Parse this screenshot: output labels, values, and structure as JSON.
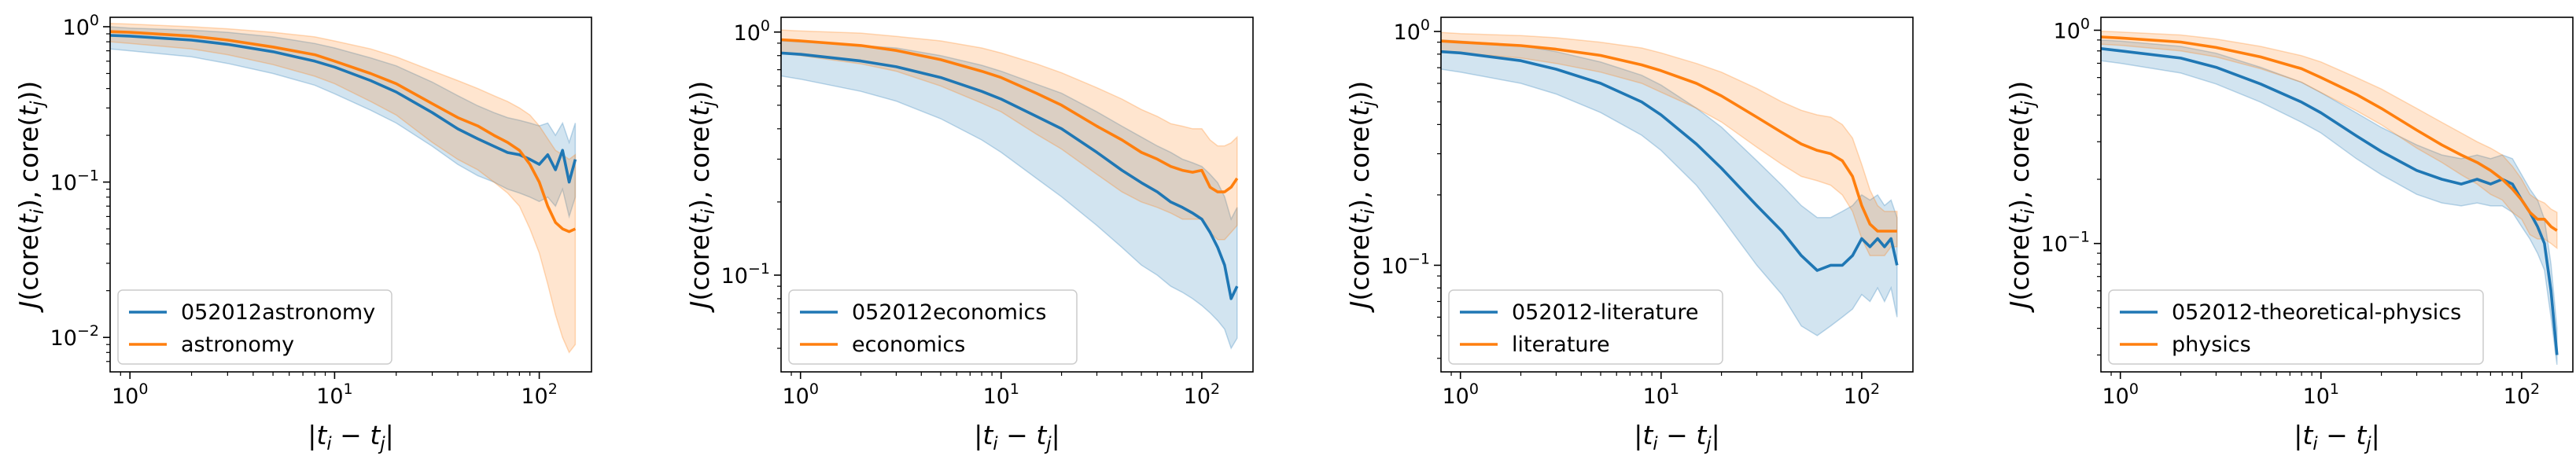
{
  "figure": {
    "colors": {
      "series_a": "#1f77b4",
      "series_b": "#ff7f0e"
    },
    "xlabel": "|t_i − t_j|",
    "ylabel": "J(core(t_i), core(t_j))"
  },
  "chart_data": [
    {
      "type": "line",
      "title": "",
      "xlabel": "|t_i − t_j|",
      "ylabel": "J(core(t_i), core(t_j))",
      "xscale": "log",
      "yscale": "log",
      "xlim": [
        0.8,
        180
      ],
      "ylim": [
        0.006,
        1.15
      ],
      "xticks": [
        {
          "v": 1,
          "base": "10",
          "exp": "0"
        },
        {
          "v": 10,
          "base": "10",
          "exp": "1"
        },
        {
          "v": 100,
          "base": "10",
          "exp": "2"
        }
      ],
      "yticks": [
        {
          "v": 0.01,
          "base": "10",
          "exp": "−2"
        },
        {
          "v": 0.1,
          "base": "10",
          "exp": "−1"
        },
        {
          "v": 1,
          "base": "10",
          "exp": "0"
        }
      ],
      "legend_position": "lower-left",
      "series": [
        {
          "name": "052012astronomy",
          "color": "#1f77b4",
          "x": [
            0.8,
            1,
            2,
            3,
            5,
            8,
            10,
            15,
            20,
            30,
            40,
            50,
            60,
            70,
            80,
            90,
            100,
            110,
            120,
            130,
            140,
            150
          ],
          "y": [
            0.88,
            0.87,
            0.82,
            0.77,
            0.69,
            0.6,
            0.55,
            0.45,
            0.38,
            0.28,
            0.22,
            0.19,
            0.17,
            0.155,
            0.15,
            0.14,
            0.13,
            0.15,
            0.12,
            0.16,
            0.1,
            0.14
          ],
          "band_low": [
            0.72,
            0.7,
            0.64,
            0.58,
            0.5,
            0.42,
            0.37,
            0.29,
            0.24,
            0.17,
            0.13,
            0.11,
            0.1,
            0.09,
            0.085,
            0.08,
            0.075,
            0.08,
            0.07,
            0.09,
            0.06,
            0.08
          ],
          "band_high": [
            1.0,
            0.98,
            0.95,
            0.92,
            0.86,
            0.78,
            0.73,
            0.63,
            0.56,
            0.44,
            0.36,
            0.31,
            0.28,
            0.26,
            0.25,
            0.24,
            0.23,
            0.24,
            0.2,
            0.24,
            0.18,
            0.24
          ]
        },
        {
          "name": "astronomy",
          "color": "#ff7f0e",
          "x": [
            0.8,
            1,
            2,
            3,
            5,
            8,
            10,
            15,
            20,
            30,
            40,
            50,
            60,
            70,
            80,
            90,
            100,
            110,
            120,
            130,
            140,
            150
          ],
          "y": [
            0.93,
            0.92,
            0.87,
            0.82,
            0.74,
            0.66,
            0.6,
            0.5,
            0.43,
            0.32,
            0.26,
            0.23,
            0.2,
            0.18,
            0.16,
            0.13,
            0.1,
            0.07,
            0.055,
            0.05,
            0.048,
            0.05
          ],
          "band_low": [
            0.8,
            0.78,
            0.72,
            0.66,
            0.57,
            0.48,
            0.43,
            0.33,
            0.27,
            0.18,
            0.14,
            0.12,
            0.1,
            0.085,
            0.07,
            0.05,
            0.035,
            0.022,
            0.014,
            0.01,
            0.008,
            0.009
          ],
          "band_high": [
            1.05,
            1.04,
            1.0,
            0.97,
            0.92,
            0.86,
            0.81,
            0.72,
            0.64,
            0.52,
            0.45,
            0.4,
            0.36,
            0.33,
            0.3,
            0.27,
            0.23,
            0.19,
            0.16,
            0.15,
            0.14,
            0.15
          ]
        }
      ]
    },
    {
      "type": "line",
      "title": "",
      "xlabel": "|t_i − t_j|",
      "ylabel": "J(core(t_i), core(t_j))",
      "xscale": "log",
      "yscale": "log",
      "xlim": [
        0.8,
        180
      ],
      "ylim": [
        0.04,
        1.15
      ],
      "xticks": [
        {
          "v": 1,
          "base": "10",
          "exp": "0"
        },
        {
          "v": 10,
          "base": "10",
          "exp": "1"
        },
        {
          "v": 100,
          "base": "10",
          "exp": "2"
        }
      ],
      "yticks": [
        {
          "v": 0.1,
          "base": "10",
          "exp": "−1"
        },
        {
          "v": 1,
          "base": "10",
          "exp": "0"
        }
      ],
      "legend_position": "lower-left",
      "series": [
        {
          "name": "052012economics",
          "color": "#1f77b4",
          "x": [
            0.8,
            1,
            2,
            3,
            5,
            8,
            10,
            15,
            20,
            30,
            40,
            50,
            60,
            70,
            80,
            90,
            100,
            110,
            120,
            130,
            140,
            150
          ],
          "y": [
            0.82,
            0.81,
            0.76,
            0.72,
            0.65,
            0.57,
            0.53,
            0.45,
            0.4,
            0.32,
            0.27,
            0.24,
            0.22,
            0.2,
            0.19,
            0.18,
            0.17,
            0.15,
            0.13,
            0.11,
            0.08,
            0.09
          ],
          "band_low": [
            0.66,
            0.64,
            0.57,
            0.52,
            0.44,
            0.36,
            0.32,
            0.25,
            0.21,
            0.16,
            0.13,
            0.11,
            0.1,
            0.09,
            0.085,
            0.08,
            0.075,
            0.07,
            0.065,
            0.06,
            0.05,
            0.055
          ],
          "band_high": [
            0.92,
            0.91,
            0.88,
            0.86,
            0.8,
            0.73,
            0.69,
            0.61,
            0.56,
            0.47,
            0.41,
            0.37,
            0.34,
            0.32,
            0.3,
            0.29,
            0.28,
            0.26,
            0.24,
            0.21,
            0.17,
            0.19
          ]
        },
        {
          "name": "economics",
          "color": "#ff7f0e",
          "x": [
            0.8,
            1,
            2,
            3,
            5,
            8,
            10,
            15,
            20,
            30,
            40,
            50,
            60,
            70,
            80,
            90,
            100,
            110,
            120,
            130,
            140,
            150
          ],
          "y": [
            0.93,
            0.92,
            0.88,
            0.84,
            0.77,
            0.69,
            0.65,
            0.56,
            0.5,
            0.41,
            0.36,
            0.32,
            0.3,
            0.28,
            0.27,
            0.265,
            0.27,
            0.23,
            0.22,
            0.22,
            0.23,
            0.25
          ],
          "band_low": [
            0.82,
            0.8,
            0.74,
            0.69,
            0.6,
            0.51,
            0.47,
            0.38,
            0.33,
            0.26,
            0.22,
            0.2,
            0.19,
            0.18,
            0.17,
            0.17,
            0.17,
            0.15,
            0.14,
            0.14,
            0.15,
            0.16
          ],
          "band_high": [
            1.02,
            1.01,
            0.99,
            0.96,
            0.92,
            0.86,
            0.82,
            0.74,
            0.68,
            0.59,
            0.53,
            0.48,
            0.45,
            0.42,
            0.41,
            0.4,
            0.4,
            0.36,
            0.34,
            0.34,
            0.35,
            0.37
          ]
        }
      ]
    },
    {
      "type": "line",
      "title": "",
      "xlabel": "|t_i − t_j|",
      "ylabel": "J(core(t_i), core(t_j))",
      "xscale": "log",
      "yscale": "log",
      "xlim": [
        0.8,
        180
      ],
      "ylim": [
        0.035,
        1.15
      ],
      "xticks": [
        {
          "v": 1,
          "base": "10",
          "exp": "0"
        },
        {
          "v": 10,
          "base": "10",
          "exp": "1"
        },
        {
          "v": 100,
          "base": "10",
          "exp": "2"
        }
      ],
      "yticks": [
        {
          "v": 0.1,
          "base": "10",
          "exp": "−1"
        },
        {
          "v": 1,
          "base": "10",
          "exp": "0"
        }
      ],
      "legend_position": "lower-left",
      "series": [
        {
          "name": "052012-literature",
          "color": "#1f77b4",
          "x": [
            0.8,
            1,
            2,
            3,
            5,
            8,
            10,
            15,
            20,
            30,
            40,
            50,
            60,
            70,
            80,
            90,
            100,
            110,
            120,
            130,
            140,
            150
          ],
          "y": [
            0.82,
            0.81,
            0.75,
            0.69,
            0.6,
            0.5,
            0.44,
            0.33,
            0.26,
            0.18,
            0.14,
            0.11,
            0.095,
            0.1,
            0.1,
            0.11,
            0.13,
            0.12,
            0.13,
            0.12,
            0.13,
            0.1
          ],
          "band_low": [
            0.69,
            0.67,
            0.6,
            0.54,
            0.45,
            0.36,
            0.31,
            0.22,
            0.16,
            0.1,
            0.075,
            0.055,
            0.05,
            0.055,
            0.06,
            0.065,
            0.075,
            0.07,
            0.08,
            0.07,
            0.08,
            0.06
          ],
          "band_high": [
            0.92,
            0.91,
            0.87,
            0.82,
            0.74,
            0.65,
            0.59,
            0.47,
            0.39,
            0.28,
            0.22,
            0.18,
            0.16,
            0.16,
            0.17,
            0.18,
            0.2,
            0.19,
            0.2,
            0.18,
            0.19,
            0.16
          ]
        },
        {
          "name": "literature",
          "color": "#ff7f0e",
          "x": [
            0.8,
            1,
            2,
            3,
            5,
            8,
            10,
            15,
            20,
            30,
            40,
            50,
            60,
            70,
            80,
            90,
            100,
            110,
            120,
            130,
            140,
            150
          ],
          "y": [
            0.91,
            0.9,
            0.87,
            0.84,
            0.79,
            0.72,
            0.68,
            0.6,
            0.53,
            0.43,
            0.37,
            0.33,
            0.31,
            0.3,
            0.28,
            0.24,
            0.18,
            0.15,
            0.14,
            0.14,
            0.14,
            0.14
          ],
          "band_low": [
            0.82,
            0.81,
            0.77,
            0.73,
            0.67,
            0.6,
            0.55,
            0.47,
            0.41,
            0.32,
            0.27,
            0.24,
            0.23,
            0.22,
            0.2,
            0.17,
            0.13,
            0.11,
            0.11,
            0.11,
            0.12,
            0.12
          ],
          "band_high": [
            0.99,
            0.98,
            0.96,
            0.94,
            0.9,
            0.85,
            0.81,
            0.73,
            0.67,
            0.57,
            0.5,
            0.46,
            0.44,
            0.43,
            0.4,
            0.35,
            0.27,
            0.21,
            0.18,
            0.17,
            0.17,
            0.17
          ]
        }
      ]
    },
    {
      "type": "line",
      "title": "",
      "xlabel": "|t_i − t_j|",
      "ylabel": "J(core(t_i), core(t_j))",
      "xscale": "log",
      "yscale": "log",
      "xlim": [
        0.8,
        180
      ],
      "ylim": [
        0.025,
        1.15
      ],
      "xticks": [
        {
          "v": 1,
          "base": "10",
          "exp": "0"
        },
        {
          "v": 10,
          "base": "10",
          "exp": "1"
        },
        {
          "v": 100,
          "base": "10",
          "exp": "2"
        }
      ],
      "yticks": [
        {
          "v": 0.1,
          "base": "10",
          "exp": "−1"
        },
        {
          "v": 1,
          "base": "10",
          "exp": "0"
        }
      ],
      "legend_position": "lower-left",
      "series": [
        {
          "name": "052012-theoretical-physics",
          "color": "#1f77b4",
          "x": [
            0.8,
            1,
            2,
            3,
            5,
            8,
            10,
            15,
            20,
            30,
            40,
            50,
            60,
            70,
            80,
            90,
            100,
            110,
            120,
            130,
            140,
            150
          ],
          "y": [
            0.82,
            0.8,
            0.74,
            0.67,
            0.56,
            0.46,
            0.41,
            0.32,
            0.27,
            0.22,
            0.2,
            0.19,
            0.2,
            0.19,
            0.2,
            0.19,
            0.16,
            0.14,
            0.12,
            0.1,
            0.06,
            0.03
          ],
          "band_low": [
            0.72,
            0.7,
            0.63,
            0.56,
            0.46,
            0.37,
            0.33,
            0.25,
            0.21,
            0.17,
            0.155,
            0.15,
            0.155,
            0.15,
            0.15,
            0.14,
            0.12,
            0.105,
            0.09,
            0.075,
            0.045,
            0.027
          ],
          "band_high": [
            0.9,
            0.89,
            0.84,
            0.78,
            0.67,
            0.57,
            0.51,
            0.41,
            0.35,
            0.29,
            0.26,
            0.25,
            0.26,
            0.25,
            0.26,
            0.25,
            0.21,
            0.18,
            0.16,
            0.13,
            0.08,
            0.04
          ]
        },
        {
          "name": "physics",
          "color": "#ff7f0e",
          "x": [
            0.8,
            1,
            2,
            3,
            5,
            8,
            10,
            15,
            20,
            30,
            40,
            50,
            60,
            70,
            80,
            90,
            100,
            110,
            120,
            130,
            140,
            150
          ],
          "y": [
            0.93,
            0.92,
            0.88,
            0.83,
            0.75,
            0.66,
            0.6,
            0.5,
            0.43,
            0.34,
            0.29,
            0.26,
            0.24,
            0.22,
            0.2,
            0.18,
            0.16,
            0.14,
            0.13,
            0.13,
            0.12,
            0.115
          ],
          "band_low": [
            0.86,
            0.85,
            0.8,
            0.75,
            0.66,
            0.57,
            0.51,
            0.42,
            0.36,
            0.28,
            0.24,
            0.21,
            0.19,
            0.17,
            0.16,
            0.14,
            0.13,
            0.11,
            0.105,
            0.105,
            0.1,
            0.095
          ],
          "band_high": [
            0.99,
            0.98,
            0.95,
            0.91,
            0.84,
            0.76,
            0.71,
            0.6,
            0.53,
            0.43,
            0.37,
            0.33,
            0.3,
            0.28,
            0.26,
            0.23,
            0.2,
            0.17,
            0.16,
            0.155,
            0.145,
            0.14
          ]
        }
      ]
    }
  ]
}
